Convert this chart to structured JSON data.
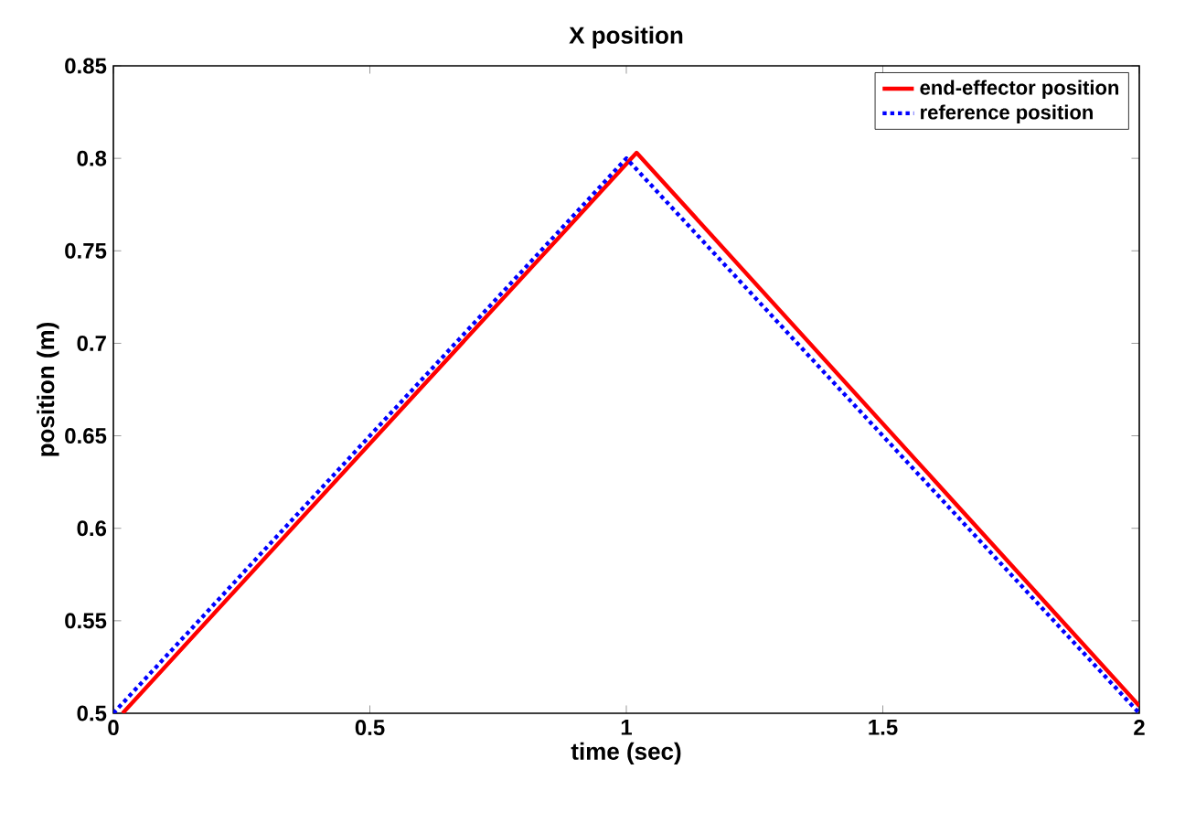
{
  "chart_data": {
    "type": "line",
    "title": "X position",
    "xlabel": "time (sec)",
    "ylabel": "position (m)",
    "xlim": [
      0,
      2
    ],
    "ylim": [
      0.5,
      0.85
    ],
    "xticks": [
      0,
      0.5,
      1,
      1.5,
      2
    ],
    "yticks": [
      0.5,
      0.55,
      0.6,
      0.65,
      0.7,
      0.75,
      0.8,
      0.85
    ],
    "legend": "top right",
    "grid": false,
    "series": [
      {
        "name": "end-effector position",
        "color": "#ff0000",
        "line_style": "solid",
        "x": [
          0.018,
          1.02,
          2
        ],
        "values": [
          0.5,
          0.803,
          0.504
        ]
      },
      {
        "name": "reference position",
        "color": "#0000ff",
        "line_style": "dotted",
        "x": [
          0,
          1,
          2
        ],
        "values": [
          0.5,
          0.8,
          0.5
        ]
      }
    ]
  }
}
